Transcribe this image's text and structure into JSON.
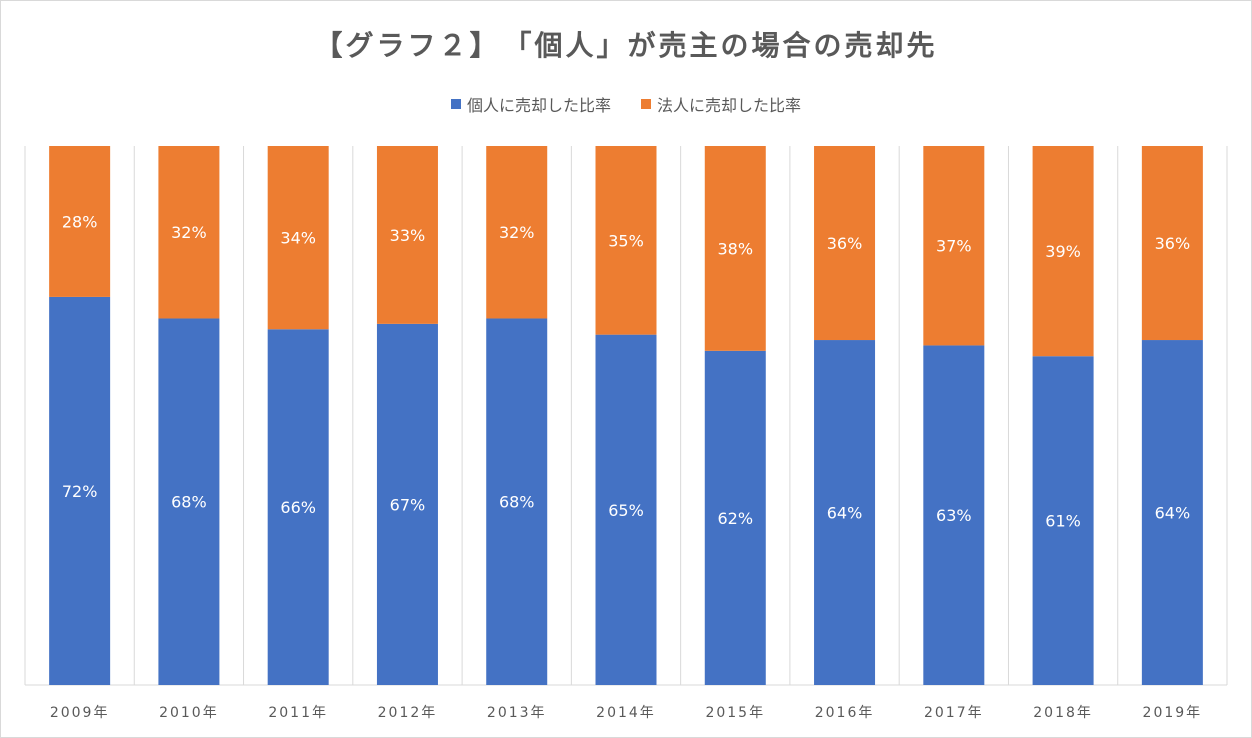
{
  "chart_data": {
    "type": "bar",
    "stacked": true,
    "title": "【グラフ２】　「個人」が売主の場合の売却先",
    "categories": [
      "2009年",
      "2010年",
      "2011年",
      "2012年",
      "2013年",
      "2014年",
      "2015年",
      "2016年",
      "2017年",
      "2018年",
      "2019年"
    ],
    "series": [
      {
        "name": "個人に売却した比率",
        "color": "#4472c4",
        "values": [
          72,
          68,
          66,
          67,
          68,
          65,
          62,
          64,
          63,
          61,
          64
        ],
        "labels": [
          "72%",
          "68%",
          "66%",
          "67%",
          "68%",
          "65%",
          "62%",
          "64%",
          "63%",
          "61%",
          "64%"
        ]
      },
      {
        "name": "法人に売却した比率",
        "color": "#ed7d31",
        "values": [
          28,
          32,
          34,
          33,
          32,
          35,
          38,
          36,
          37,
          39,
          36
        ],
        "labels": [
          "28%",
          "32%",
          "34%",
          "33%",
          "32%",
          "35%",
          "38%",
          "36%",
          "37%",
          "39%",
          "36%"
        ]
      }
    ],
    "ylim": [
      0,
      100
    ],
    "legend_position": "top",
    "grid": "vertical category separators"
  }
}
